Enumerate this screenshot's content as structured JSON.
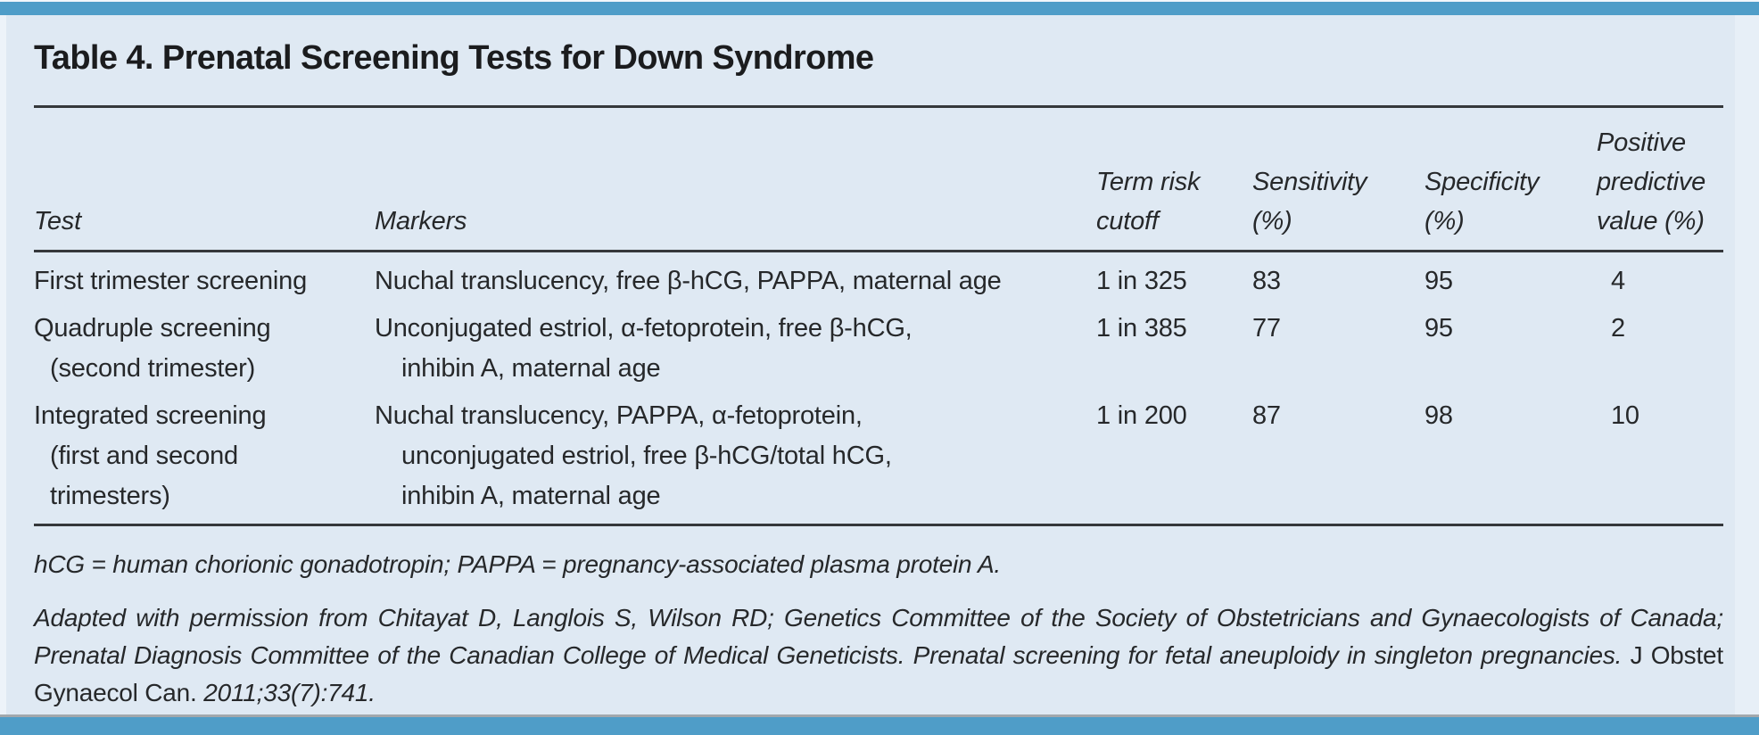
{
  "doc": {
    "title": "Table 4. Prenatal Screening Tests for Down Syndrome"
  },
  "table": {
    "columns": [
      "Test",
      "Markers",
      "Term risk\ncutoff",
      "Sensitivity\n(%)",
      "Specificity\n(%)",
      "Positive\npredictive\nvalue (%)"
    ],
    "rows": [
      {
        "test": "First trimester screening",
        "markers": "Nuchal translucency, free β-hCG, PAPPA, maternal age",
        "cutoff": "1 in 325",
        "sensitivity": "83",
        "specificity": "95",
        "ppv": "4"
      },
      {
        "test": "Quadruple screening\n(second trimester)",
        "markers": "Unconjugated estriol, α-fetoprotein, free β-hCG,\ninhibin A, maternal age",
        "cutoff": "1 in 385",
        "sensitivity": "77",
        "specificity": "95",
        "ppv": "2"
      },
      {
        "test": "Integrated screening\n(first and second\ntrimesters)",
        "markers": "Nuchal translucency, PAPPA, α-fetoprotein,\nunconjugated estriol, free β-hCG/total hCG,\ninhibin A, maternal age",
        "cutoff": "1 in 200",
        "sensitivity": "87",
        "specificity": "98",
        "ppv": "10"
      }
    ]
  },
  "footnotes": {
    "abbreviations": "hCG = human chorionic gonadotropin; PAPPA = pregnancy-associated plasma protein A.",
    "citation_text": "Adapted with permission from Chitayat D, Langlois S, Wilson RD; Genetics Committee of the Society of Obstetricians and Gynaecologists of Canada; Prenatal Diagnosis Committee of the Canadian College of Medical Geneticists. Prenatal screening for fetal aneuploidy in singleton pregnancies.",
    "citation_journal": "J Obstet Gynaecol Can.",
    "citation_tail": "2011;33(7):741."
  },
  "colors": {
    "accent_bar": "#4f9dc8",
    "panel_background": "#dfe9f3",
    "text": "#26282a",
    "rule": "#35383b"
  }
}
